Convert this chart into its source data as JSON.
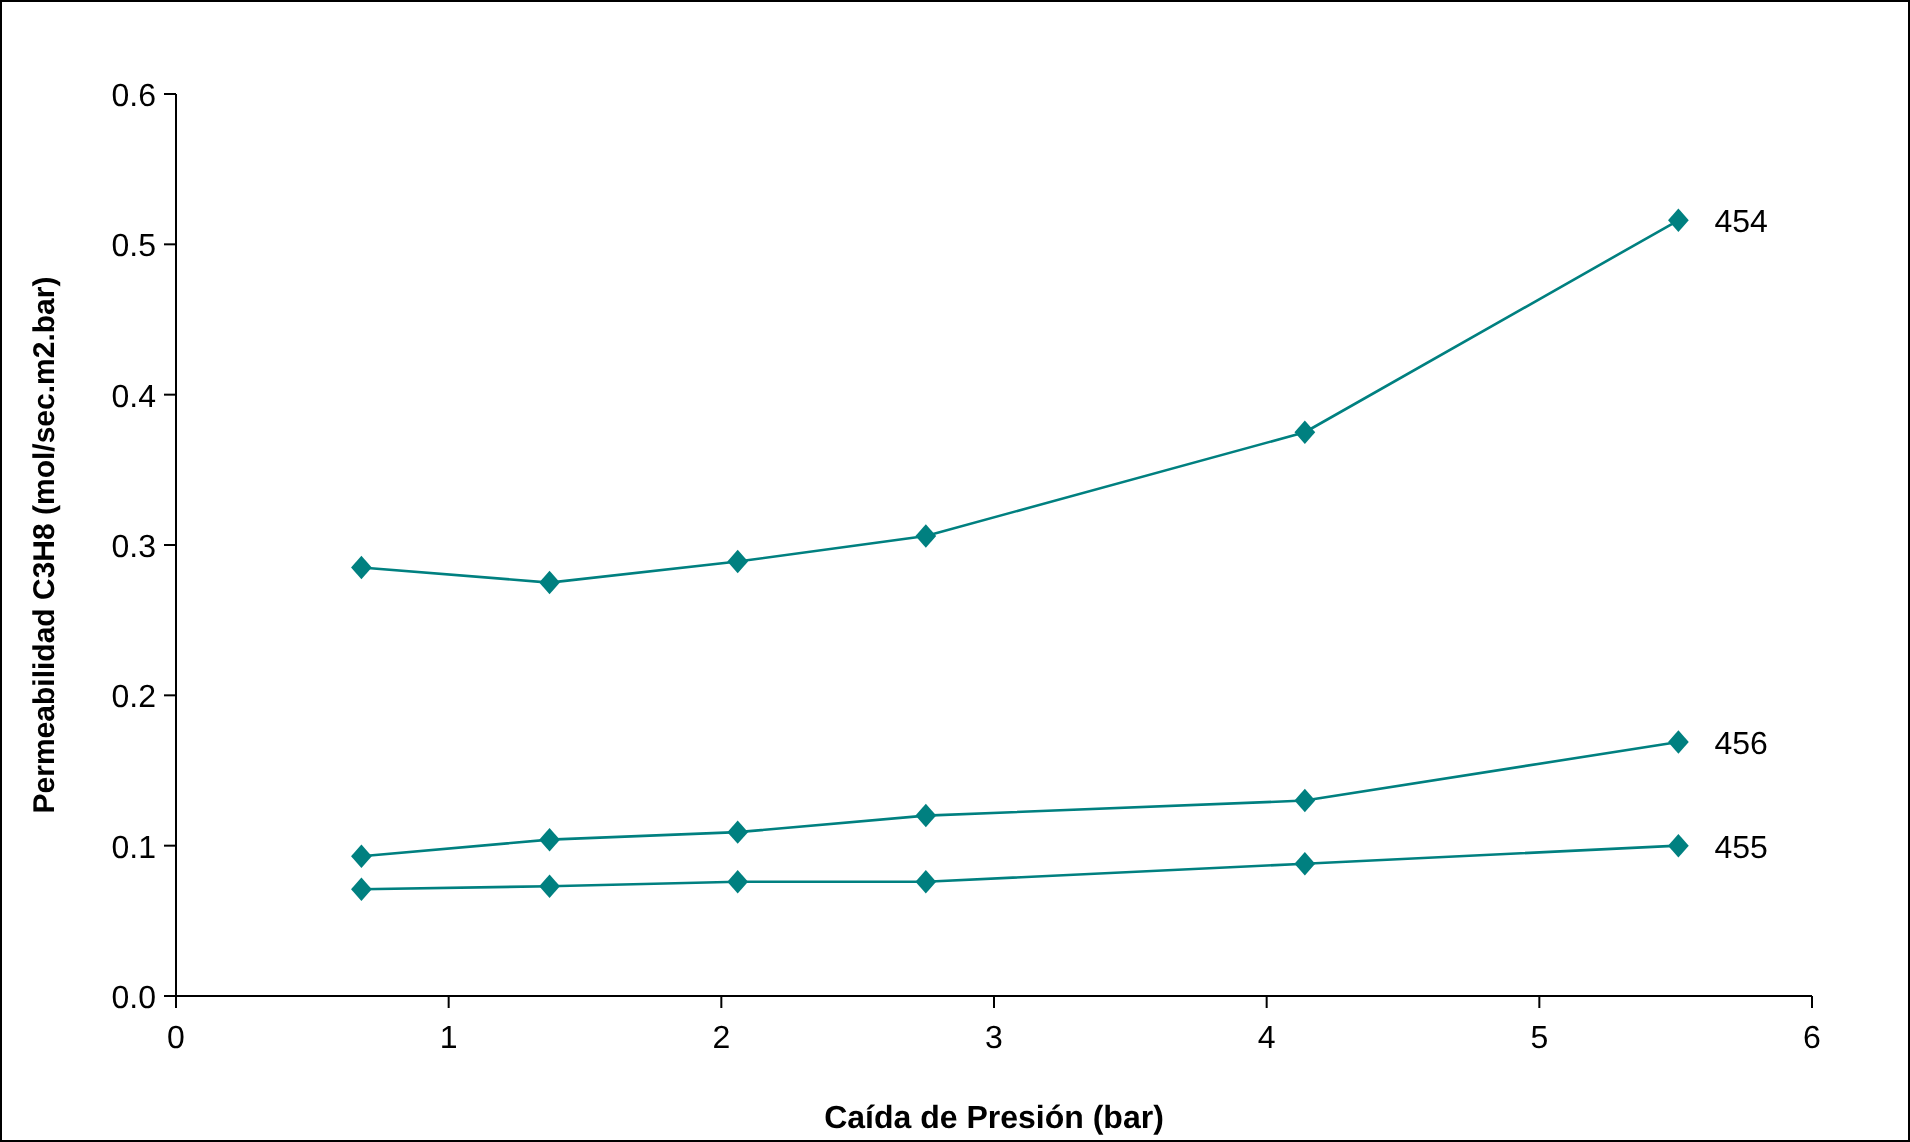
{
  "chart_data": {
    "type": "line",
    "xlabel": "Caída de Presión (bar)",
    "ylabel": "Permeabilidad  C3H8 (mol/sec.m2.bar)",
    "x": [
      0.68,
      1.37,
      2.06,
      2.75,
      4.14,
      5.51
    ],
    "xlim": [
      0,
      6
    ],
    "xticks": [
      0,
      1,
      2,
      3,
      4,
      5,
      6
    ],
    "ylim": [
      0,
      0.6
    ],
    "yticks": [
      {
        "value": 0,
        "label": "0.0"
      },
      0.1,
      0.2,
      0.3,
      0.4,
      0.5,
      0.6
    ],
    "series": [
      {
        "name": "454",
        "color": "#008080",
        "values": [
          0.285,
          0.275,
          0.289,
          0.306,
          0.375,
          0.516
        ]
      },
      {
        "name": "456",
        "color": "#008080",
        "values": [
          0.093,
          0.104,
          0.109,
          0.12,
          0.13,
          0.169
        ]
      },
      {
        "name": "455",
        "color": "#008080",
        "values": [
          0.071,
          0.073,
          0.076,
          0.076,
          0.088,
          0.1
        ]
      }
    ],
    "marker": "diamond",
    "line_style": "solid",
    "grid": false
  }
}
